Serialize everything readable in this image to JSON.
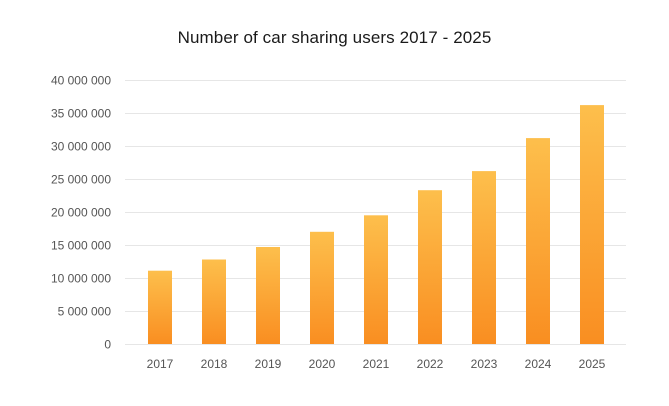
{
  "chart_data": {
    "type": "bar",
    "title": "Number of car sharing users 2017 - 2025",
    "xlabel": "",
    "ylabel": "",
    "categories": [
      "2017",
      "2018",
      "2019",
      "2020",
      "2021",
      "2022",
      "2023",
      "2024",
      "2025"
    ],
    "values": [
      11100000,
      12800000,
      14700000,
      17000000,
      19500000,
      23300000,
      26200000,
      31200000,
      36200000
    ],
    "ylim": [
      0,
      40000000
    ],
    "yticks": [
      0,
      5000000,
      10000000,
      15000000,
      20000000,
      25000000,
      30000000,
      35000000,
      40000000
    ],
    "ytick_labels": [
      "0",
      "5 000 000",
      "10 000 000",
      "15 000 000",
      "20 000 000",
      "25 000 000",
      "30 000 000",
      "35 000 000",
      "40 000 000"
    ],
    "grid": true,
    "legend": "none",
    "colors": {
      "bar_top": "#FDBF4C",
      "bar_bottom": "#F98E21",
      "grid": "#e6e6e6",
      "text": "#555555",
      "title": "#1a1a1a"
    }
  }
}
